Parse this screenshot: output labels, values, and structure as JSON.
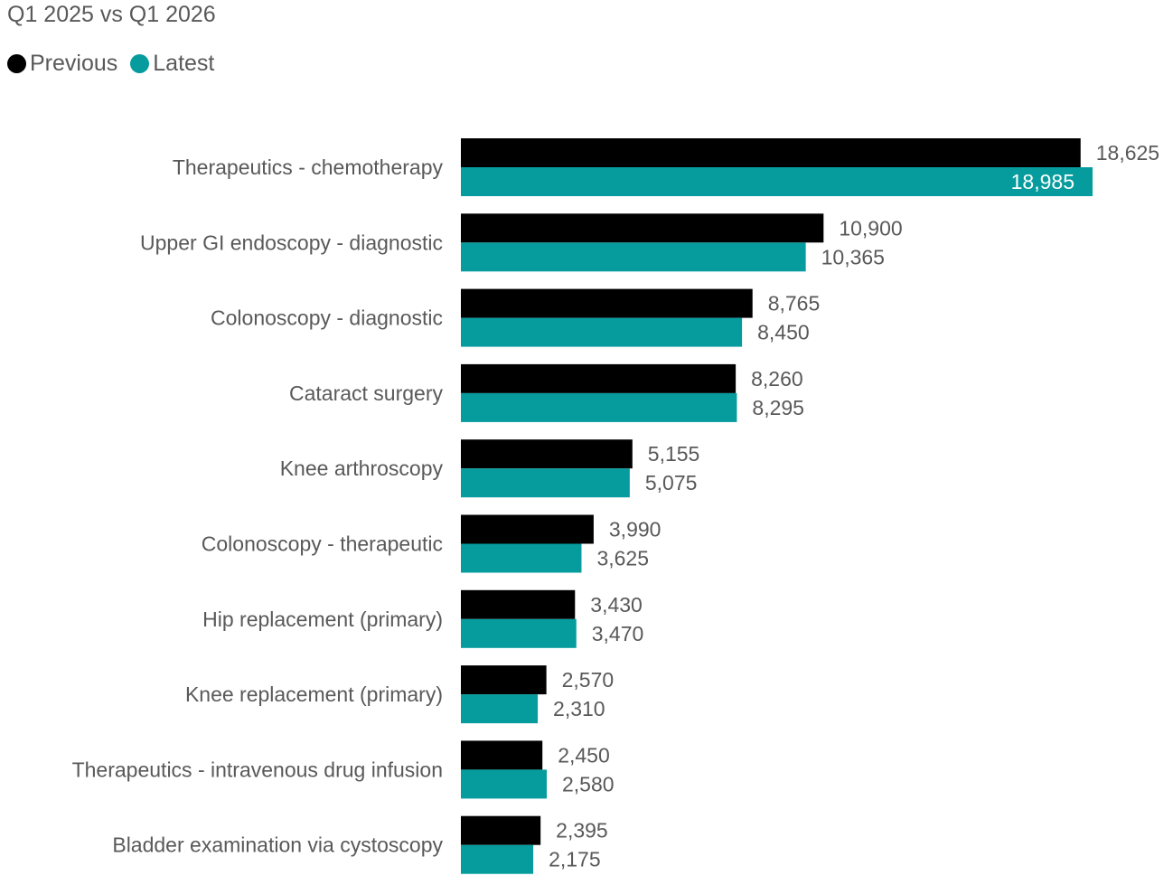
{
  "colors": {
    "previous": "#000000",
    "latest": "#069c9e",
    "text": "#595959",
    "label_inside": "#ffffff"
  },
  "chart_data": {
    "type": "bar",
    "orientation": "horizontal",
    "title": "Q1 2025 vs Q1 2026",
    "legend_position": "top-left",
    "grid": false,
    "xlim": [
      0,
      19000
    ],
    "categories": [
      "Therapeutics - chemotherapy",
      "Upper GI endoscopy - diagnostic",
      "Colonoscopy - diagnostic",
      "Cataract surgery",
      "Knee arthroscopy",
      "Colonoscopy - therapeutic",
      "Hip replacement (primary)",
      "Knee replacement (primary)",
      "Therapeutics - intravenous drug infusion",
      "Bladder examination via cystoscopy"
    ],
    "series": [
      {
        "name": "Previous",
        "color": "#000000",
        "values": [
          18625,
          10900,
          8765,
          8260,
          5155,
          3990,
          3430,
          2570,
          2450,
          2395
        ],
        "labels": [
          "18,625",
          "10,900",
          "8,765",
          "8,260",
          "5,155",
          "3,990",
          "3,430",
          "2,570",
          "2,450",
          "2,395"
        ]
      },
      {
        "name": "Latest",
        "color": "#069c9e",
        "values": [
          18985,
          10365,
          8450,
          8295,
          5075,
          3625,
          3470,
          2310,
          2580,
          2175
        ],
        "labels": [
          "18,985",
          "10,365",
          "8,450",
          "8,295",
          "5,075",
          "3,625",
          "3,470",
          "2,310",
          "2,580",
          "2,175"
        ]
      }
    ]
  }
}
